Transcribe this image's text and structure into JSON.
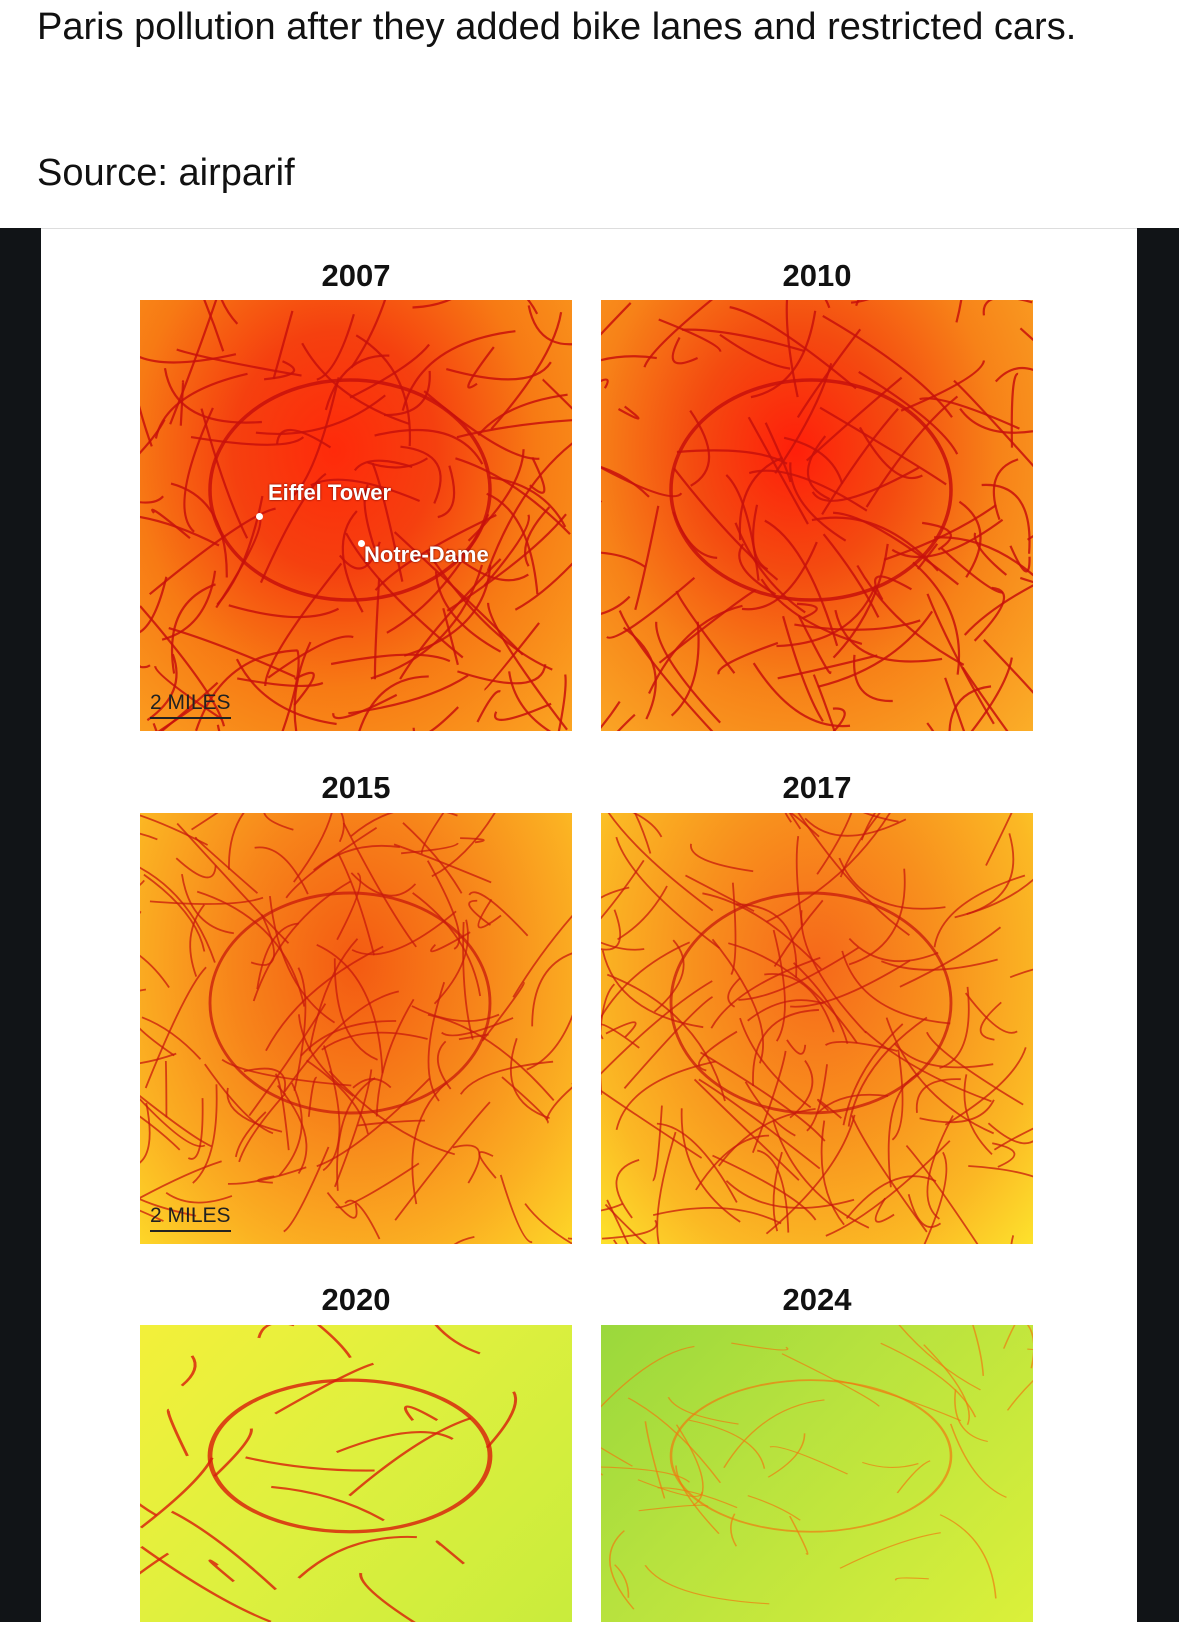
{
  "post": {
    "caption": "Paris pollution after they added bike lanes and restricted cars.",
    "source": "Source: airparif"
  },
  "maps": [
    {
      "year": "2007",
      "level": "very-high",
      "labels": [
        "Eiffel Tower",
        "Notre-Dame"
      ],
      "scale": "2 MILES"
    },
    {
      "year": "2010",
      "level": "very-high"
    },
    {
      "year": "2015",
      "level": "high",
      "scale": "2 MILES"
    },
    {
      "year": "2017",
      "level": "high"
    },
    {
      "year": "2020",
      "level": "low"
    },
    {
      "year": "2024",
      "level": "very-low"
    }
  ],
  "colors": {
    "red": "#e8140c",
    "orange": "#f7941d",
    "yellow": "#ffe81a",
    "green": "#7fd43a"
  }
}
